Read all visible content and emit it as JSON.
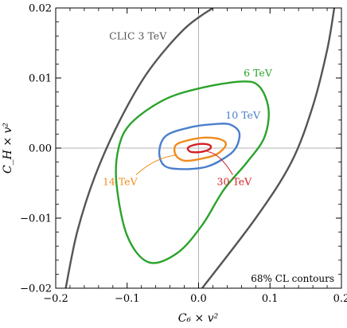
{
  "chart_data": {
    "type": "contour",
    "title": "",
    "xlabel": "C₆ × v²",
    "ylabel": "C_H × v²",
    "xlim": [
      -0.2,
      0.2
    ],
    "ylim": [
      -0.02,
      0.02
    ],
    "xticks": [
      "−0.2",
      "−0.1",
      "0.0",
      "0.1",
      "0.2"
    ],
    "yticks": [
      "−0.02",
      "−0.01",
      "0.00",
      "0.01",
      "0.02"
    ],
    "annotation": "68% CL contours",
    "reference_lines": {
      "x": 0,
      "y": 0
    },
    "series": [
      {
        "name": "CLIC 3 TeV",
        "color": "#555555",
        "shape": "open-band",
        "left_boundary": [
          [
            -0.186,
            -0.02
          ],
          [
            -0.17,
            -0.012
          ],
          [
            -0.145,
            -0.004
          ],
          [
            -0.11,
            0.004
          ],
          [
            -0.07,
            0.011
          ],
          [
            -0.02,
            0.017
          ],
          [
            0.02,
            0.02
          ]
        ],
        "right_boundary": [
          [
            0.005,
            -0.02
          ],
          [
            0.08,
            -0.01
          ],
          [
            0.13,
            -0.002
          ],
          [
            0.16,
            0.006
          ],
          [
            0.18,
            0.014
          ],
          [
            0.19,
            0.02
          ]
        ]
      },
      {
        "name": "6 TeV",
        "color": "#2aa32a",
        "shape": "closed",
        "points": [
          [
            -0.07,
            -0.0163
          ],
          [
            -0.1,
            -0.0125
          ],
          [
            -0.115,
            -0.005
          ],
          [
            -0.112,
            0.0
          ],
          [
            -0.095,
            0.0035
          ],
          [
            -0.05,
            0.0068
          ],
          [
            0.0,
            0.0085
          ],
          [
            0.06,
            0.0095
          ],
          [
            0.085,
            0.0088
          ],
          [
            0.098,
            0.0055
          ],
          [
            0.092,
            0.0015
          ],
          [
            0.068,
            -0.002
          ],
          [
            0.035,
            -0.006
          ],
          [
            0.005,
            -0.011
          ],
          [
            -0.03,
            -0.015
          ]
        ]
      },
      {
        "name": "10 TeV",
        "color": "#4a7fcc",
        "shape": "closed",
        "points": [
          [
            -0.025,
            -0.003
          ],
          [
            -0.048,
            -0.0025
          ],
          [
            -0.055,
            -0.0005
          ],
          [
            -0.045,
            0.0018
          ],
          [
            -0.01,
            0.003
          ],
          [
            0.02,
            0.0034
          ],
          [
            0.043,
            0.0034
          ],
          [
            0.057,
            0.0022
          ],
          [
            0.052,
            0.0
          ],
          [
            0.035,
            -0.0015
          ],
          [
            0.01,
            -0.0027
          ]
        ]
      },
      {
        "name": "14 TeV",
        "color": "#f08c1e",
        "shape": "closed",
        "points": [
          [
            -0.02,
            -0.0018
          ],
          [
            -0.032,
            -0.001
          ],
          [
            -0.032,
            0.0004
          ],
          [
            -0.015,
            0.0011
          ],
          [
            0.01,
            0.0015
          ],
          [
            0.032,
            0.0012
          ],
          [
            0.038,
            0.0004
          ],
          [
            0.025,
            -0.0009
          ],
          [
            0.0,
            -0.0016
          ]
        ]
      },
      {
        "name": "30 TeV",
        "color": "#d42028",
        "shape": "closed",
        "points": [
          [
            -0.012,
            -0.0005
          ],
          [
            -0.015,
            0.0
          ],
          [
            -0.008,
            0.0004
          ],
          [
            0.005,
            0.0006
          ],
          [
            0.016,
            0.0004
          ],
          [
            0.016,
            -0.0001
          ],
          [
            0.006,
            -0.0005
          ],
          [
            -0.005,
            -0.0006
          ]
        ]
      }
    ],
    "labels": [
      {
        "text": "CLIC 3 TeV",
        "at": [
          -0.085,
          0.0155
        ],
        "color": "#555555"
      },
      {
        "text": "6 TeV",
        "at": [
          0.083,
          0.0102
        ],
        "color": "#2aa32a"
      },
      {
        "text": "10 TeV",
        "at": [
          0.062,
          0.0042
        ],
        "color": "#4a7fcc"
      },
      {
        "text": "14 TeV",
        "at": [
          -0.11,
          -0.0053
        ],
        "color": "#f08c1e",
        "leader_to": [
          -0.03,
          -0.001
        ]
      },
      {
        "text": "30 TeV",
        "at": [
          0.05,
          -0.0053
        ],
        "color": "#d42028",
        "leader_to": [
          0.012,
          -0.0005
        ]
      }
    ]
  }
}
